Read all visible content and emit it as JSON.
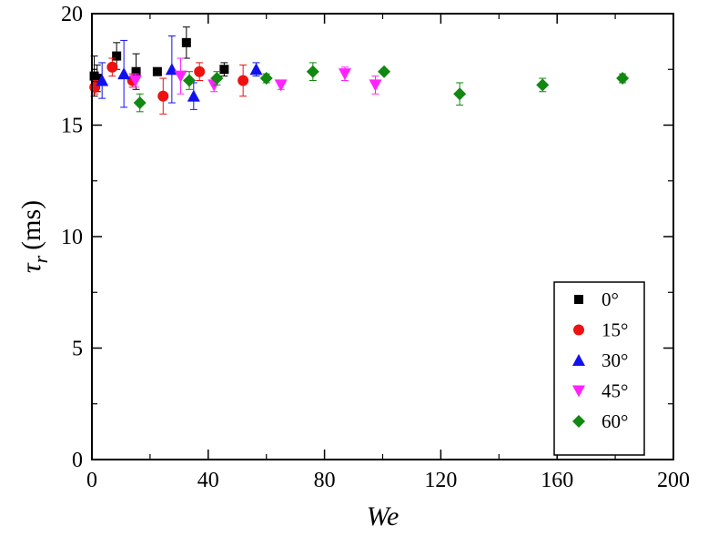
{
  "chart_data": {
    "type": "scatter",
    "xlabel": "We",
    "ylabel_symbol": "τ",
    "ylabel_subscript": "r",
    "ylabel_unit": "(ms)",
    "xlim": [
      0,
      200
    ],
    "ylim": [
      0,
      20
    ],
    "x_ticks": [
      "0",
      "40",
      "80",
      "120",
      "160",
      "200"
    ],
    "y_ticks": [
      "0",
      "5",
      "10",
      "15",
      "20"
    ],
    "grid": false,
    "legend_position": "right",
    "series": [
      {
        "name": "0°",
        "color": "#000000",
        "marker": "square",
        "points": [
          {
            "x": 0.8,
            "y": 17.2,
            "err": 0.9
          },
          {
            "x": 1.8,
            "y": 17.1,
            "err": 0.6
          },
          {
            "x": 8.5,
            "y": 18.1,
            "err": 0.6
          },
          {
            "x": 15.2,
            "y": 17.4,
            "err": 0.8
          },
          {
            "x": 22.5,
            "y": 17.4,
            "err": 0.0
          },
          {
            "x": 32.5,
            "y": 18.7,
            "err": 0.7
          },
          {
            "x": 45.5,
            "y": 17.5,
            "err": 0.3
          }
        ]
      },
      {
        "name": "15°",
        "color": "#ee1111",
        "marker": "circle",
        "points": [
          {
            "x": 1.0,
            "y": 16.7,
            "err": 0.3
          },
          {
            "x": 7.0,
            "y": 17.6,
            "err": 0.4
          },
          {
            "x": 14.0,
            "y": 17.0,
            "err": 0.3
          },
          {
            "x": 24.5,
            "y": 16.3,
            "err": 0.8
          },
          {
            "x": 37.0,
            "y": 17.4,
            "err": 0.4
          },
          {
            "x": 52.0,
            "y": 17.0,
            "err": 0.7
          }
        ]
      },
      {
        "name": "30°",
        "color": "#1111ee",
        "marker": "triangle-up",
        "points": [
          {
            "x": 3.5,
            "y": 17.0,
            "err": 0.8
          },
          {
            "x": 11.0,
            "y": 17.3,
            "err": 1.5
          },
          {
            "x": 27.5,
            "y": 17.5,
            "err": 1.5
          },
          {
            "x": 35.0,
            "y": 16.3,
            "err": 0.6
          },
          {
            "x": 56.5,
            "y": 17.5,
            "err": 0.3
          }
        ]
      },
      {
        "name": "45°",
        "color": "#ff22ff",
        "marker": "triangle-down",
        "points": [
          {
            "x": 15.0,
            "y": 17.0,
            "err": 0.3
          },
          {
            "x": 30.5,
            "y": 17.2,
            "err": 0.8
          },
          {
            "x": 42.0,
            "y": 16.8,
            "err": 0.3
          },
          {
            "x": 65.0,
            "y": 16.8,
            "err": 0.2
          },
          {
            "x": 87.0,
            "y": 17.3,
            "err": 0.3
          },
          {
            "x": 97.5,
            "y": 16.8,
            "err": 0.4
          }
        ]
      },
      {
        "name": "60°",
        "color": "#118811",
        "marker": "diamond",
        "points": [
          {
            "x": 16.5,
            "y": 16.0,
            "err": 0.4
          },
          {
            "x": 33.5,
            "y": 17.0,
            "err": 0.4
          },
          {
            "x": 43.0,
            "y": 17.1,
            "err": 0.3
          },
          {
            "x": 60.0,
            "y": 17.1,
            "err": 0.2
          },
          {
            "x": 76.0,
            "y": 17.4,
            "err": 0.4
          },
          {
            "x": 100.5,
            "y": 17.4,
            "err": 0.1
          },
          {
            "x": 126.5,
            "y": 16.4,
            "err": 0.5
          },
          {
            "x": 155.0,
            "y": 16.8,
            "err": 0.3
          },
          {
            "x": 182.5,
            "y": 17.1,
            "err": 0.2
          }
        ]
      }
    ]
  }
}
